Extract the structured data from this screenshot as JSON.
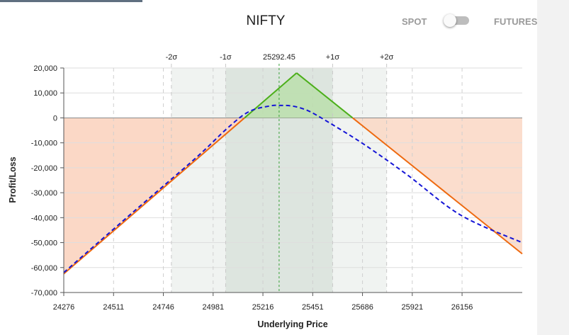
{
  "header": {
    "title": "NIFTY",
    "spot_label": "SPOT",
    "futures_label": "FUTURES",
    "toggle_state": "spot"
  },
  "colors": {
    "profit_line": "#4caf1a",
    "expiry_loss_line": "#ee6a10",
    "target_line": "#1515d6",
    "loss_zone": "#fad7c4",
    "profit_fill": "#b9dfa9",
    "sigma1_band": "#dde5df",
    "sigma2_band": "#f0f3f1",
    "spot_line": "#3aa03a"
  },
  "chart_data": {
    "type": "line",
    "xlabel": "Underlying Price",
    "ylabel": "Profit/Loss",
    "xlim": [
      24276,
      26440
    ],
    "ylim": [
      -70000,
      20000
    ],
    "x_ticks": [
      24276,
      24511,
      24746,
      24981,
      25216,
      25451,
      25686,
      25921,
      26156
    ],
    "y_ticks": [
      20000,
      10000,
      0,
      -10000,
      -20000,
      -30000,
      -40000,
      -50000,
      -60000,
      -70000
    ],
    "y_tick_labels": [
      "20,000",
      "10,000",
      "0",
      "-10,000",
      "-20,000",
      "-30,000",
      "-40,000",
      "-50,000",
      "-60,000",
      "-70,000"
    ],
    "spot": {
      "value": 25292.45,
      "label": "25292.45"
    },
    "sigma_markers": [
      {
        "label": "-2σ",
        "value": 24784
      },
      {
        "label": "-1σ",
        "value": 25040
      },
      {
        "label": "+1σ",
        "value": 25545
      },
      {
        "label": "+2σ",
        "value": 25800
      }
    ],
    "series": [
      {
        "style": "solid",
        "color_key": "expiry_loss_line",
        "x": [
          24276,
          25375,
          26440
        ],
        "y": [
          -62500,
          18000,
          -54500
        ]
      },
      {
        "style": "dashed",
        "color_key": "target_line",
        "x": [
          24276,
          24600,
          24900,
          25050,
          25150,
          25250,
          25300,
          25350,
          25400,
          25450,
          25550,
          25700,
          25900,
          26150,
          26440
        ],
        "y": [
          -62000,
          -38000,
          -16000,
          -4000,
          2500,
          4800,
          5000,
          4800,
          3800,
          2000,
          -3000,
          -11000,
          -23000,
          -39000,
          -50000
        ]
      }
    ]
  }
}
